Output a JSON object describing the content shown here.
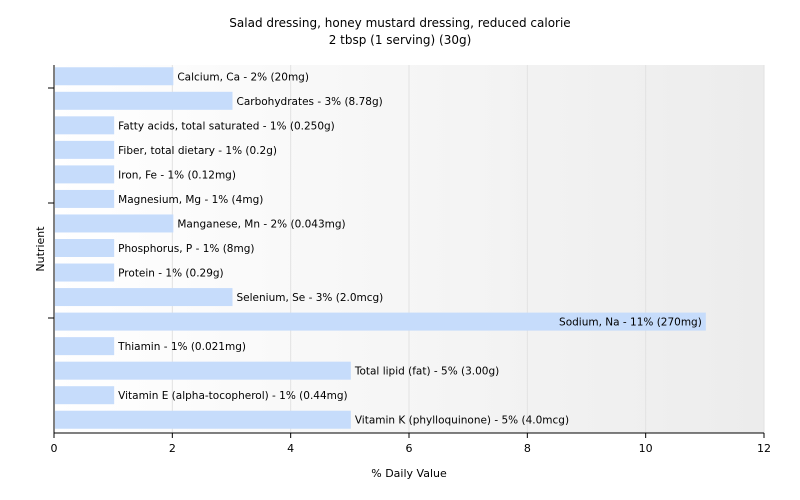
{
  "chart_data": {
    "type": "bar",
    "orientation": "horizontal",
    "title": "Salad dressing, honey mustard dressing, reduced calorie",
    "subtitle": "2 tbsp (1 serving) (30g)",
    "xlabel": "% Daily Value",
    "ylabel": "Nutrient",
    "xlim": [
      0,
      12
    ],
    "xticks": [
      "0",
      "2",
      "4",
      "6",
      "8",
      "10",
      "12"
    ],
    "grid": true,
    "bar_color": "#c6dcfb",
    "categories": [
      "Calcium, Ca",
      "Carbohydrates",
      "Fatty acids, total saturated",
      "Fiber, total dietary",
      "Iron, Fe",
      "Magnesium, Mg",
      "Manganese, Mn",
      "Phosphorus, P",
      "Protein",
      "Selenium, Se",
      "Sodium, Na",
      "Thiamin",
      "Total lipid (fat)",
      "Vitamin E (alpha-tocopherol)",
      "Vitamin K (phylloquinone)"
    ],
    "values": [
      2,
      3,
      1,
      1,
      1,
      1,
      2,
      1,
      1,
      3,
      11,
      1,
      5,
      1,
      5
    ],
    "labels": [
      "Calcium, Ca - 2% (20mg)",
      "Carbohydrates - 3% (8.78g)",
      "Fatty acids, total saturated - 1% (0.250g)",
      "Fiber, total dietary - 1% (0.2g)",
      "Iron, Fe - 1% (0.12mg)",
      "Magnesium, Mg - 1% (4mg)",
      "Manganese, Mn - 2% (0.043mg)",
      "Phosphorus, P - 1% (8mg)",
      "Protein - 1% (0.29g)",
      "Selenium, Se - 3% (2.0mcg)",
      "Sodium, Na - 11% (270mg)",
      "Thiamin - 1% (0.021mg)",
      "Total lipid (fat) - 5% (3.00g)",
      "Vitamin E (alpha-tocopherol) - 1% (0.44mg)",
      "Vitamin K (phylloquinone) - 5% (4.0mcg)"
    ]
  }
}
